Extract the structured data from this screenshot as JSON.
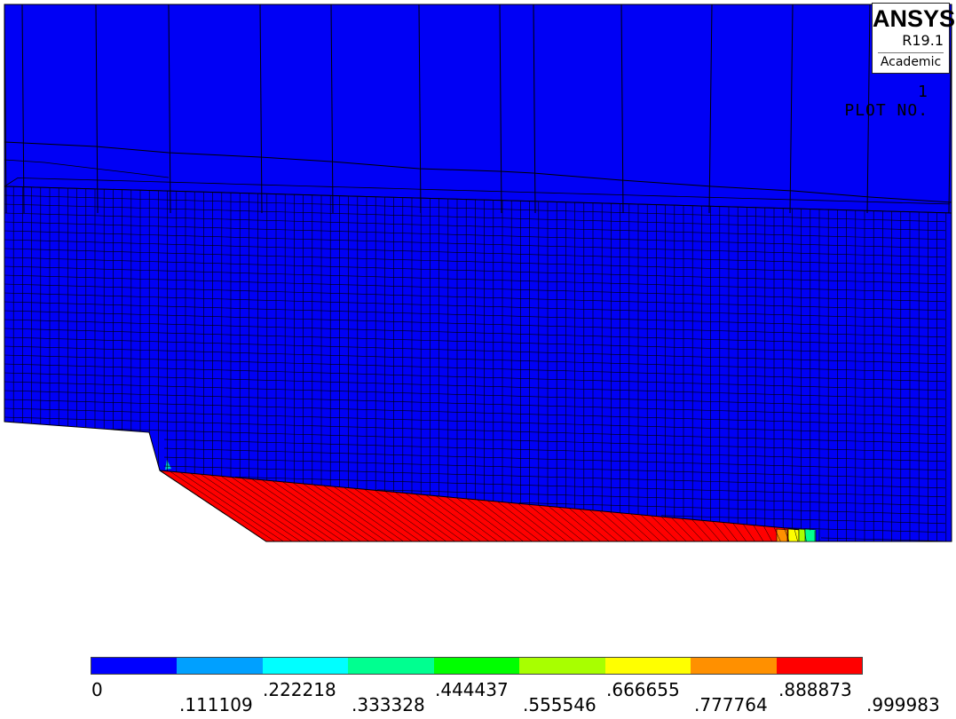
{
  "logo": {
    "brand": "ANSYS",
    "release": "R19.1",
    "edition": "Academic"
  },
  "plot_label": {
    "text": "PLOT NO.",
    "number": "1"
  },
  "colors": {
    "mesh_fill": "#0000f5",
    "mesh_lines": "#000000",
    "hot_region": "#ff0000",
    "background": "#ffffff"
  },
  "legend": {
    "labels": [
      "0",
      ".111109",
      ".222218",
      ".333328",
      ".444437",
      ".555546",
      ".666655",
      ".777764",
      ".888873",
      ".999983"
    ],
    "colors": [
      "#0000ff",
      "#00a0ff",
      "#00ffff",
      "#00ff90",
      "#00ff00",
      "#a8ff00",
      "#ffff00",
      "#ff9000",
      "#ff0000"
    ]
  }
}
